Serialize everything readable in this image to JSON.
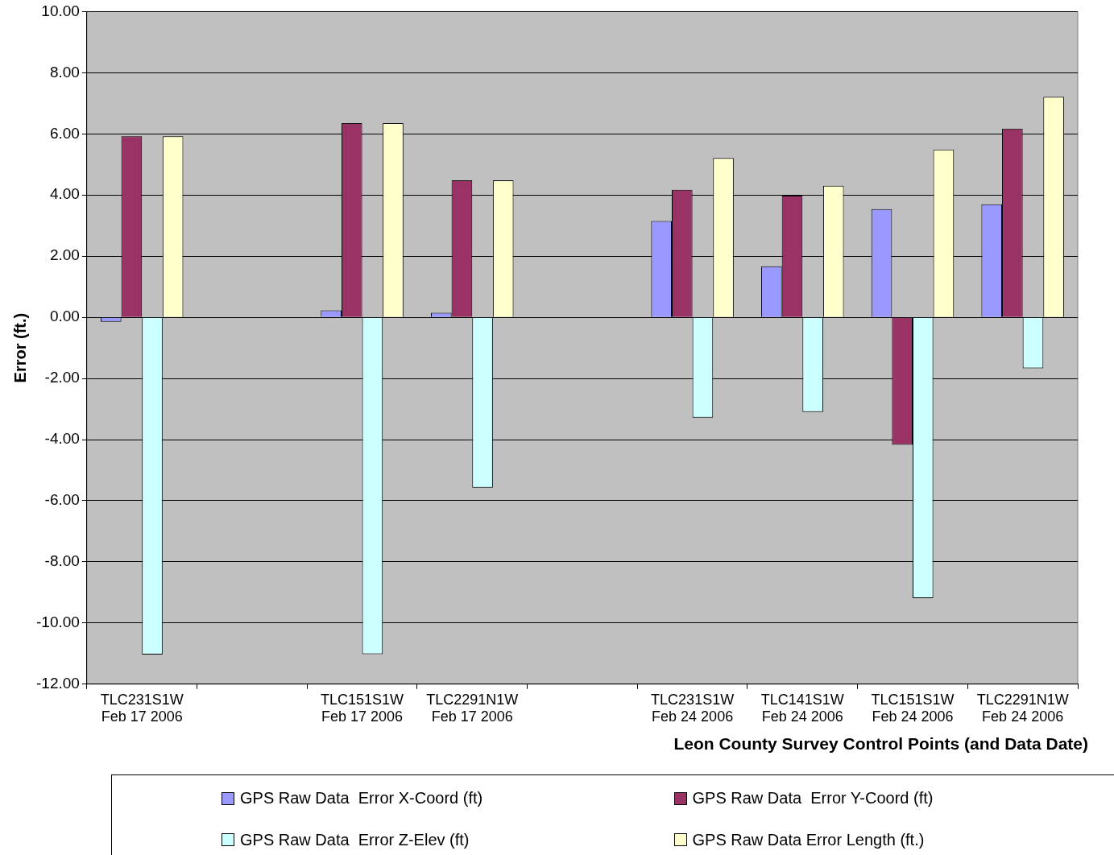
{
  "chart_data": {
    "type": "bar",
    "xlabel": "Leon County Survey Control Points (and Data Date)",
    "ylabel": "Error (ft.)",
    "categories": [
      "TLC231S1W Feb 17 2006",
      null,
      "TLC151S1W Feb 17 2006",
      "TLC2291N1W Feb 17 2006",
      null,
      "TLC231S1W Feb 24 2006",
      "TLC141S1W Feb 24 2006",
      "TLC151S1W Feb 24 2006",
      "TLC2291N1W Feb 24 2006"
    ],
    "series": [
      {
        "name": "GPS Raw Data  Error X-Coord (ft)",
        "color": "#9999ff",
        "values": [
          -0.15,
          null,
          0.23,
          0.15,
          null,
          3.15,
          1.67,
          3.54,
          3.7
        ]
      },
      {
        "name": "GPS Raw Data  Error Y-Coord (ft)",
        "color": "#993366",
        "values": [
          5.92,
          null,
          6.35,
          4.48,
          null,
          4.17,
          3.98,
          -4.17,
          6.17
        ]
      },
      {
        "name": "GPS Raw Data  Error Z-Elev (ft)",
        "color": "#ccffff",
        "values": [
          -11.03,
          null,
          -11.02,
          -5.57,
          null,
          -3.28,
          -3.1,
          -9.19,
          -1.67
        ]
      },
      {
        "name": "GPS Raw Data Error Length (ft.)",
        "color": "#ffffcc",
        "values": [
          5.92,
          null,
          6.35,
          4.48,
          null,
          5.21,
          4.3,
          5.49,
          7.21
        ]
      }
    ],
    "ylim": [
      -12,
      10
    ],
    "yticks": [
      {
        "value": -12,
        "label": "-12.00"
      },
      {
        "value": -10,
        "label": "-10.00"
      },
      {
        "value": -8,
        "label": "-8.00"
      },
      {
        "value": -6,
        "label": "-6.00"
      },
      {
        "value": -4,
        "label": "-4.00"
      },
      {
        "value": -2,
        "label": "-2.00"
      },
      {
        "value": 0,
        "label": "0.00"
      },
      {
        "value": 2,
        "label": "2.00"
      },
      {
        "value": 4,
        "label": "4.00"
      },
      {
        "value": 6,
        "label": "6.00"
      },
      {
        "value": 8,
        "label": "8.00"
      },
      {
        "value": 10,
        "label": "10.00"
      }
    ],
    "grid": "y",
    "legend": "bottom"
  }
}
